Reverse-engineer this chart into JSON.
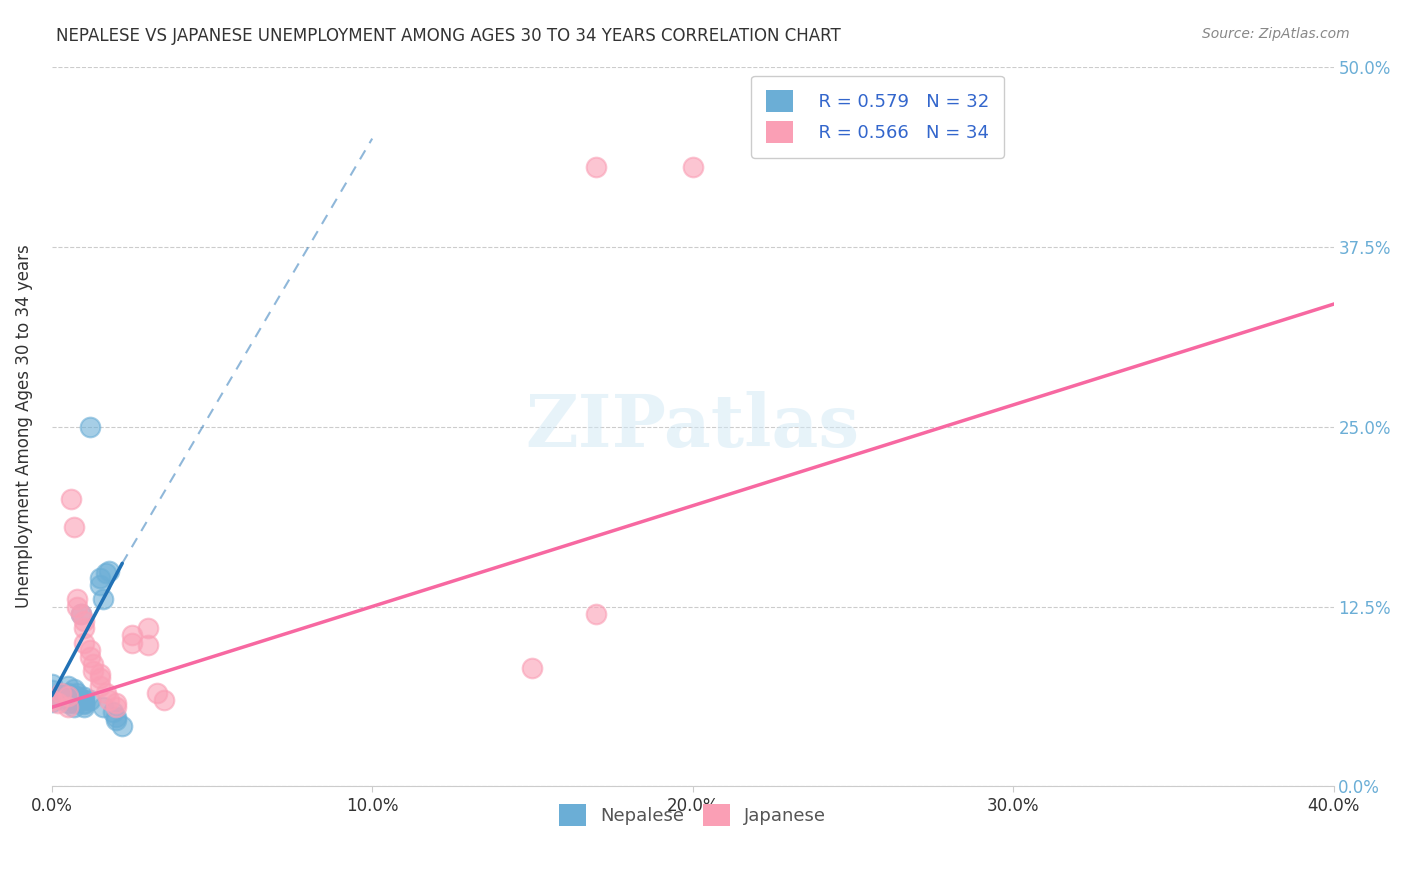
{
  "title": "NEPALESE VS JAPANESE UNEMPLOYMENT AMONG AGES 30 TO 34 YEARS CORRELATION CHART",
  "source": "Source: ZipAtlas.com",
  "ylabel": "Unemployment Among Ages 30 to 34 years",
  "xlabel_ticks": [
    "0.0%",
    "10.0%",
    "20.0%",
    "30.0%",
    "40.0%"
  ],
  "ylabel_ticks": [
    "0.0%",
    "12.5%",
    "25.0%",
    "37.5%",
    "50.0%"
  ],
  "xlim": [
    0.0,
    0.4
  ],
  "ylim": [
    0.0,
    0.5
  ],
  "legend_nepalese_R": "R = 0.579",
  "legend_nepalese_N": "N = 32",
  "legend_japanese_R": "R = 0.566",
  "legend_japanese_N": "N = 34",
  "nepalese_color": "#6baed6",
  "japanese_color": "#fa9fb5",
  "nepalese_line_color": "#2171b5",
  "japanese_line_color": "#f768a1",
  "watermark": "ZIPatlas",
  "nepalese_points": [
    [
      0.0,
      0.062
    ],
    [
      0.0,
      0.071
    ],
    [
      0.0,
      0.067
    ],
    [
      0.0,
      0.059
    ],
    [
      0.005,
      0.065
    ],
    [
      0.005,
      0.063
    ],
    [
      0.005,
      0.06
    ],
    [
      0.005,
      0.058
    ],
    [
      0.005,
      0.07
    ],
    [
      0.007,
      0.068
    ],
    [
      0.007,
      0.058
    ],
    [
      0.007,
      0.055
    ],
    [
      0.008,
      0.063
    ],
    [
      0.008,
      0.065
    ],
    [
      0.009,
      0.12
    ],
    [
      0.01,
      0.06
    ],
    [
      0.01,
      0.058
    ],
    [
      0.01,
      0.055
    ],
    [
      0.01,
      0.057
    ],
    [
      0.01,
      0.062
    ],
    [
      0.012,
      0.06
    ],
    [
      0.012,
      0.25
    ],
    [
      0.015,
      0.14
    ],
    [
      0.015,
      0.145
    ],
    [
      0.016,
      0.13
    ],
    [
      0.016,
      0.055
    ],
    [
      0.017,
      0.148
    ],
    [
      0.018,
      0.15
    ],
    [
      0.019,
      0.052
    ],
    [
      0.02,
      0.048
    ],
    [
      0.02,
      0.046
    ],
    [
      0.022,
      0.042
    ]
  ],
  "japanese_points": [
    [
      0.0,
      0.06
    ],
    [
      0.002,
      0.058
    ],
    [
      0.003,
      0.065
    ],
    [
      0.005,
      0.063
    ],
    [
      0.005,
      0.055
    ],
    [
      0.006,
      0.2
    ],
    [
      0.007,
      0.18
    ],
    [
      0.008,
      0.13
    ],
    [
      0.008,
      0.125
    ],
    [
      0.009,
      0.12
    ],
    [
      0.01,
      0.115
    ],
    [
      0.01,
      0.11
    ],
    [
      0.01,
      0.1
    ],
    [
      0.012,
      0.095
    ],
    [
      0.012,
      0.09
    ],
    [
      0.013,
      0.085
    ],
    [
      0.013,
      0.08
    ],
    [
      0.015,
      0.078
    ],
    [
      0.015,
      0.075
    ],
    [
      0.015,
      0.07
    ],
    [
      0.017,
      0.065
    ],
    [
      0.018,
      0.06
    ],
    [
      0.02,
      0.058
    ],
    [
      0.02,
      0.055
    ],
    [
      0.025,
      0.1
    ],
    [
      0.025,
      0.105
    ],
    [
      0.03,
      0.11
    ],
    [
      0.03,
      0.098
    ],
    [
      0.033,
      0.065
    ],
    [
      0.035,
      0.06
    ],
    [
      0.15,
      0.082
    ],
    [
      0.2,
      0.43
    ],
    [
      0.17,
      0.12
    ],
    [
      0.17,
      0.43
    ]
  ],
  "nepalese_trendline": [
    [
      0.0,
      0.063
    ],
    [
      0.022,
      0.155
    ]
  ],
  "nepalese_trendline_ext": [
    [
      0.0,
      0.063
    ],
    [
      0.1,
      0.45
    ]
  ],
  "japanese_trendline": [
    [
      0.0,
      0.055
    ],
    [
      0.4,
      0.335
    ]
  ]
}
